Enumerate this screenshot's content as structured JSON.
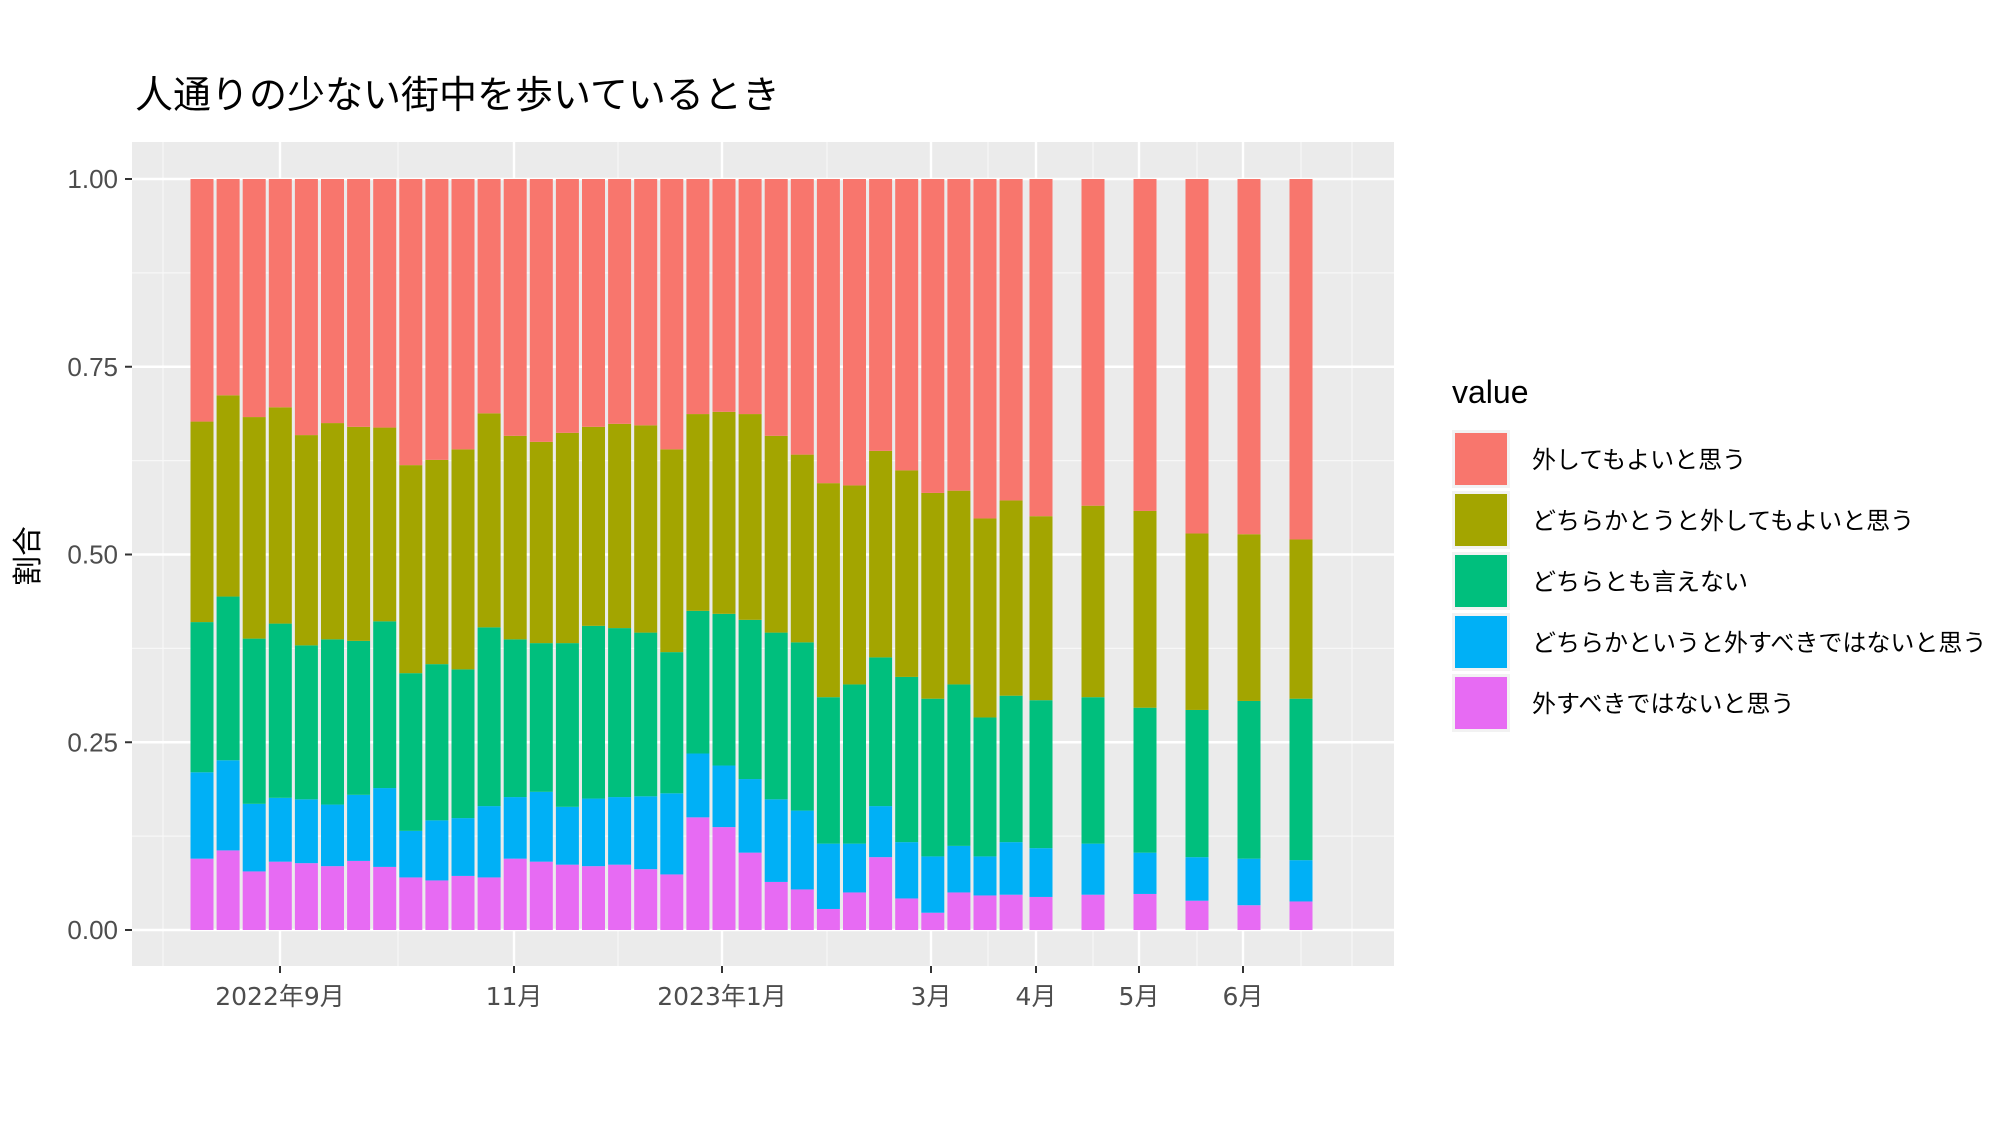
{
  "chart_data": {
    "type": "bar",
    "stacked": true,
    "title": "人通りの少ない街中を歩いているとき",
    "xlabel": "",
    "ylabel": "割合",
    "ylim": [
      0,
      1
    ],
    "yticks": [
      "0.00",
      "0.25",
      "0.50",
      "0.75",
      "1.00"
    ],
    "xtick_labels": [
      "2022年9月",
      "11月",
      "2023年1月",
      "3月",
      "4月",
      "5月",
      "6月"
    ],
    "grid": true,
    "legend_title": "value",
    "legend_position": "right",
    "series": [
      {
        "name": "外してもよいと思う",
        "color": "#F8766D",
        "values": [
          0.323,
          0.288,
          0.317,
          0.304,
          0.341,
          0.325,
          0.33,
          0.331,
          0.381,
          0.374,
          0.36,
          0.312,
          0.342,
          0.35,
          0.338,
          0.33,
          0.326,
          0.328,
          0.36,
          0.313,
          0.31,
          0.313,
          0.342,
          0.367,
          0.405,
          0.408,
          0.362,
          0.388,
          0.418,
          0.415,
          0.452,
          0.428,
          0.449,
          0.435,
          0.442,
          0.472,
          0.473,
          0.48
        ]
      },
      {
        "name": "どちらかとうと外してもよいと思う",
        "color": "#A3A500",
        "values": [
          0.267,
          0.268,
          0.295,
          0.288,
          0.28,
          0.288,
          0.285,
          0.258,
          0.277,
          0.272,
          0.293,
          0.285,
          0.271,
          0.268,
          0.28,
          0.265,
          0.272,
          0.276,
          0.27,
          0.262,
          0.269,
          0.274,
          0.262,
          0.25,
          0.285,
          0.265,
          0.275,
          0.275,
          0.274,
          0.258,
          0.265,
          0.26,
          0.245,
          0.255,
          0.262,
          0.235,
          0.222,
          0.212
        ]
      },
      {
        "name": "どちらとも言えない",
        "color": "#00BF7D",
        "values": [
          0.2,
          0.218,
          0.22,
          0.232,
          0.205,
          0.22,
          0.205,
          0.222,
          0.21,
          0.208,
          0.198,
          0.238,
          0.21,
          0.198,
          0.218,
          0.23,
          0.225,
          0.218,
          0.188,
          0.19,
          0.202,
          0.212,
          0.222,
          0.224,
          0.195,
          0.212,
          0.198,
          0.22,
          0.21,
          0.215,
          0.185,
          0.195,
          0.197,
          0.195,
          0.193,
          0.196,
          0.21,
          0.215
        ]
      },
      {
        "name": "どちらかというと外すべきではないと思う",
        "color": "#00B0F6",
        "values": [
          0.115,
          0.12,
          0.09,
          0.085,
          0.085,
          0.082,
          0.088,
          0.105,
          0.062,
          0.08,
          0.077,
          0.095,
          0.082,
          0.093,
          0.077,
          0.09,
          0.09,
          0.097,
          0.108,
          0.085,
          0.082,
          0.098,
          0.11,
          0.105,
          0.087,
          0.065,
          0.068,
          0.075,
          0.075,
          0.062,
          0.052,
          0.07,
          0.065,
          0.068,
          0.055,
          0.058,
          0.062,
          0.055
        ]
      },
      {
        "name": "外すべきではないと思う",
        "color": "#E76BF3",
        "values": [
          0.095,
          0.106,
          0.078,
          0.091,
          0.089,
          0.085,
          0.092,
          0.084,
          0.07,
          0.066,
          0.072,
          0.07,
          0.095,
          0.091,
          0.087,
          0.085,
          0.087,
          0.081,
          0.074,
          0.15,
          0.137,
          0.103,
          0.064,
          0.054,
          0.028,
          0.05,
          0.097,
          0.042,
          0.023,
          0.05,
          0.046,
          0.047,
          0.044,
          0.047,
          0.048,
          0.039,
          0.033,
          0.038
        ]
      }
    ]
  }
}
